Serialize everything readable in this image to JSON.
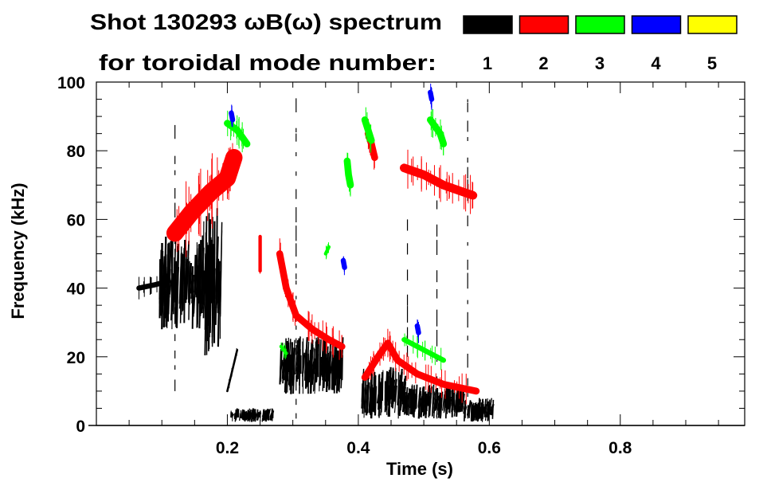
{
  "chart_data": {
    "type": "heatmap",
    "title": "Shot 130293 ωB(ω) spectrum",
    "legend_title": "for toroidal mode number:",
    "legend": [
      {
        "label": "1",
        "color": "#000000"
      },
      {
        "label": "2",
        "color": "#ff0000"
      },
      {
        "label": "3",
        "color": "#00ff00"
      },
      {
        "label": "4",
        "color": "#0000ff"
      },
      {
        "label": "5",
        "color": "#ffff00"
      }
    ],
    "legend_placement": "top-right",
    "xlabel": "Time (s)",
    "ylabel": "Frequency (kHz)",
    "xlim": [
      0,
      0.99
    ],
    "ylim": [
      0,
      100
    ],
    "xticks": [
      {
        "value": 0.2,
        "label": "0.2"
      },
      {
        "value": 0.4,
        "label": "0.4"
      },
      {
        "value": 0.6,
        "label": "0.6"
      },
      {
        "value": 0.8,
        "label": "0.8"
      }
    ],
    "yticks": [
      {
        "value": 0,
        "label": "0"
      },
      {
        "value": 20,
        "label": "20"
      },
      {
        "value": 40,
        "label": "40"
      },
      {
        "value": 60,
        "label": "60"
      },
      {
        "value": 80,
        "label": "80"
      },
      {
        "value": 100,
        "label": "100"
      }
    ],
    "x_minor_step": 0.05,
    "y_minor_step": 5,
    "grid": false,
    "modes": [
      {
        "mode": "1",
        "features": [
          {
            "kind": "line",
            "width_khz": 1.5,
            "points": [
              [
                0.065,
                40
              ],
              [
                0.09,
                41
              ],
              [
                0.11,
                42
              ]
            ]
          },
          {
            "kind": "burst",
            "t": [
              0.095,
              0.16
            ],
            "f": [
              28,
              55
            ]
          },
          {
            "kind": "burst",
            "t": [
              0.16,
              0.19
            ],
            "f": [
              20,
              65
            ]
          },
          {
            "kind": "burst",
            "t": [
              0.28,
              0.375
            ],
            "f": [
              9,
              26
            ]
          },
          {
            "kind": "burst",
            "t": [
              0.405,
              0.47
            ],
            "f": [
              2,
              17
            ]
          },
          {
            "kind": "burst",
            "t": [
              0.47,
              0.56
            ],
            "f": [
              2,
              12
            ]
          },
          {
            "kind": "burst",
            "t": [
              0.56,
              0.605
            ],
            "f": [
              1,
              8
            ]
          },
          {
            "kind": "burst",
            "t": [
              0.205,
              0.27
            ],
            "f": [
              1,
              5
            ]
          },
          {
            "kind": "vline",
            "t": 0.12,
            "f": [
              10,
              88
            ]
          },
          {
            "kind": "vline",
            "t": 0.305,
            "f": [
              2,
              100
            ]
          },
          {
            "kind": "vline",
            "t": 0.52,
            "f": [
              2,
              70
            ]
          },
          {
            "kind": "vline",
            "t": 0.567,
            "f": [
              2,
              95
            ]
          },
          {
            "kind": "vline",
            "t": 0.475,
            "f": [
              20,
              60
            ]
          },
          {
            "kind": "line",
            "width_khz": 0.6,
            "points": [
              [
                0.2,
                10
              ],
              [
                0.21,
                18
              ],
              [
                0.215,
                22
              ]
            ]
          }
        ]
      },
      {
        "mode": "2",
        "features": [
          {
            "kind": "line",
            "width_khz": 5,
            "points": [
              [
                0.12,
                56
              ],
              [
                0.145,
                62
              ],
              [
                0.175,
                68
              ],
              [
                0.2,
                72
              ],
              [
                0.21,
                78
              ]
            ]
          },
          {
            "kind": "line",
            "width_khz": 2,
            "points": [
              [
                0.28,
                50
              ],
              [
                0.29,
                40
              ],
              [
                0.305,
                32
              ],
              [
                0.33,
                28
              ],
              [
                0.355,
                25
              ],
              [
                0.375,
                23
              ]
            ]
          },
          {
            "kind": "line",
            "width_khz": 2,
            "points": [
              [
                0.41,
                14
              ],
              [
                0.43,
                20
              ],
              [
                0.445,
                24
              ],
              [
                0.46,
                19
              ],
              [
                0.49,
                15
              ],
              [
                0.53,
                12
              ],
              [
                0.58,
                10
              ]
            ]
          },
          {
            "kind": "line",
            "width_khz": 2.5,
            "points": [
              [
                0.47,
                75
              ],
              [
                0.5,
                73
              ],
              [
                0.53,
                70
              ],
              [
                0.56,
                68
              ],
              [
                0.575,
                67
              ]
            ]
          },
          {
            "kind": "line",
            "width_khz": 2,
            "points": [
              [
                0.415,
                85
              ],
              [
                0.42,
                82
              ],
              [
                0.425,
                78
              ]
            ]
          },
          {
            "kind": "line",
            "width_khz": 1,
            "points": [
              [
                0.25,
                55
              ],
              [
                0.25,
                45
              ]
            ]
          }
        ]
      },
      {
        "mode": "3",
        "features": [
          {
            "kind": "line",
            "width_khz": 2,
            "points": [
              [
                0.2,
                88
              ],
              [
                0.215,
                86
              ],
              [
                0.23,
                82
              ]
            ]
          },
          {
            "kind": "line",
            "width_khz": 2,
            "points": [
              [
                0.383,
                77
              ],
              [
                0.385,
                73
              ],
              [
                0.388,
                70
              ]
            ]
          },
          {
            "kind": "line",
            "width_khz": 2,
            "points": [
              [
                0.41,
                89
              ],
              [
                0.415,
                86
              ],
              [
                0.42,
                83
              ]
            ]
          },
          {
            "kind": "line",
            "width_khz": 2,
            "points": [
              [
                0.51,
                89
              ],
              [
                0.525,
                85
              ],
              [
                0.53,
                82
              ]
            ]
          },
          {
            "kind": "line",
            "width_khz": 1.5,
            "points": [
              [
                0.47,
                25
              ],
              [
                0.5,
                22
              ],
              [
                0.53,
                19
              ]
            ]
          },
          {
            "kind": "line",
            "width_khz": 1,
            "points": [
              [
                0.282,
                23
              ],
              [
                0.29,
                21
              ]
            ]
          },
          {
            "kind": "line",
            "width_khz": 1,
            "points": [
              [
                0.35,
                50
              ],
              [
                0.355,
                52
              ]
            ]
          }
        ]
      },
      {
        "mode": "4",
        "features": [
          {
            "kind": "line",
            "width_khz": 1.5,
            "points": [
              [
                0.49,
                29
              ],
              [
                0.492,
                27
              ]
            ]
          },
          {
            "kind": "line",
            "width_khz": 1.5,
            "points": [
              [
                0.377,
                48
              ],
              [
                0.379,
                46
              ]
            ]
          },
          {
            "kind": "line",
            "width_khz": 1.5,
            "points": [
              [
                0.206,
                91
              ],
              [
                0.208,
                89
              ]
            ]
          },
          {
            "kind": "line",
            "width_khz": 1.5,
            "points": [
              [
                0.51,
                97
              ],
              [
                0.512,
                95
              ]
            ]
          }
        ]
      },
      {
        "mode": "5",
        "features": []
      }
    ]
  }
}
